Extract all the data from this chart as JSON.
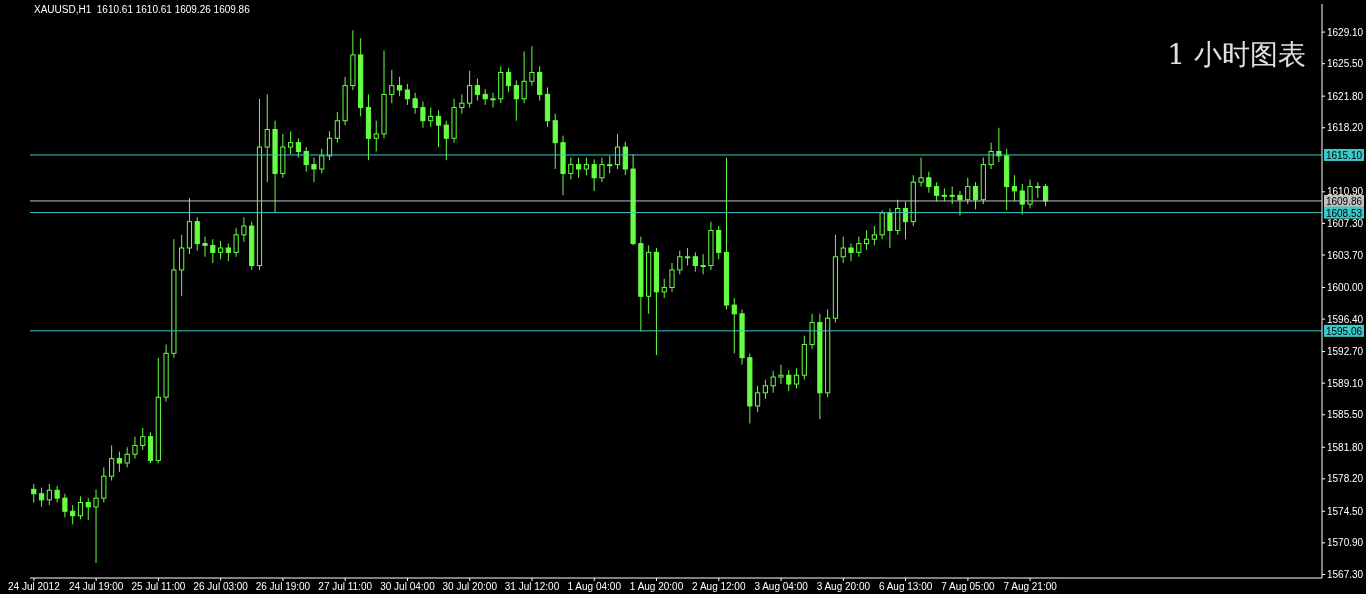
{
  "chart_data": {
    "type": "candlestick",
    "title": "XAUUSD,H1  1610.61 1610.61 1609.26 1609.86",
    "annotations": [
      "1 小时图表"
    ],
    "color": "#66ff44",
    "categories": [
      "24 Jul 2012",
      null,
      null,
      null,
      null,
      null,
      null,
      null,
      "24 Jul 19:00",
      null,
      null,
      null,
      null,
      null,
      null,
      null,
      "25 Jul 11:00",
      null,
      null,
      null,
      null,
      null,
      null,
      null,
      "26 Jul 03:00",
      null,
      null,
      null,
      null,
      null,
      null,
      null,
      "26 Jul 19:00",
      null,
      null,
      null,
      null,
      null,
      null,
      null,
      "27 Jul 11:00",
      null,
      null,
      null,
      null,
      null,
      null,
      null,
      "30 Jul 04:00",
      null,
      null,
      null,
      null,
      null,
      null,
      null,
      "30 Jul 20:00",
      null,
      null,
      null,
      null,
      null,
      null,
      null,
      "31 Jul 12:00",
      null,
      null,
      null,
      null,
      null,
      null,
      null,
      "1 Aug 04:00",
      null,
      null,
      null,
      null,
      null,
      null,
      null,
      "1 Aug 20:00",
      null,
      null,
      null,
      null,
      null,
      null,
      null,
      "2 Aug 12:00",
      null,
      null,
      null,
      null,
      null,
      null,
      null,
      "3 Aug 04:00",
      null,
      null,
      null,
      null,
      null,
      null,
      null,
      "3 Aug 20:00",
      null,
      null,
      null,
      null,
      null,
      null,
      null,
      "6 Aug 13:00",
      null,
      null,
      null,
      null,
      null,
      null,
      null,
      "7 Aug 05:00",
      null,
      null,
      null,
      null,
      null,
      null,
      null,
      "7 Aug 21:00",
      null,
      null,
      null,
      null,
      null,
      null,
      null,
      null,
      null,
      null,
      null,
      null,
      null,
      null,
      null,
      null,
      null,
      null,
      null,
      null,
      null,
      null,
      null,
      null,
      null,
      null,
      null,
      null,
      null,
      null,
      null,
      null,
      null,
      null,
      null,
      null,
      null
    ],
    "ohlc": [
      [
        1577.0,
        1577.6,
        1575.5,
        1576.5
      ],
      [
        1576.5,
        1577.2,
        1575.0,
        1575.8
      ],
      [
        1575.8,
        1577.6,
        1575.2,
        1576.9
      ],
      [
        1576.9,
        1577.4,
        1575.5,
        1576.0
      ],
      [
        1576.0,
        1576.5,
        1573.8,
        1574.5
      ],
      [
        1574.5,
        1575.2,
        1573.0,
        1574.0
      ],
      [
        1574.0,
        1576.2,
        1573.6,
        1575.5
      ],
      [
        1575.5,
        1576.0,
        1573.5,
        1575.0
      ],
      [
        1575.0,
        1577.0,
        1568.6,
        1576.0
      ],
      [
        1576.0,
        1579.5,
        1575.5,
        1578.5
      ],
      [
        1578.5,
        1582.0,
        1578.0,
        1580.5
      ],
      [
        1580.5,
        1581.3,
        1579.0,
        1580.0
      ],
      [
        1580.0,
        1581.8,
        1579.5,
        1581.0
      ],
      [
        1581.0,
        1583.0,
        1580.5,
        1582.0
      ],
      [
        1582.0,
        1584.0,
        1581.5,
        1583.0
      ],
      [
        1583.0,
        1583.5,
        1580.0,
        1580.3
      ],
      [
        1580.3,
        1592.0,
        1580.0,
        1587.5
      ],
      [
        1587.5,
        1593.5,
        1587.0,
        1592.5
      ],
      [
        1592.5,
        1605.5,
        1592.0,
        1602.0
      ],
      [
        1602.0,
        1606.0,
        1599.0,
        1604.5
      ],
      [
        1604.5,
        1610.2,
        1603.8,
        1607.5
      ],
      [
        1607.5,
        1608.0,
        1604.2,
        1605.0
      ],
      [
        1605.0,
        1605.8,
        1603.5,
        1604.8
      ],
      [
        1604.8,
        1605.5,
        1602.8,
        1604.0
      ],
      [
        1604.0,
        1605.3,
        1603.2,
        1604.5
      ],
      [
        1604.5,
        1605.0,
        1603.0,
        1604.0
      ],
      [
        1604.0,
        1606.8,
        1603.5,
        1606.0
      ],
      [
        1606.0,
        1608.0,
        1605.2,
        1607.0
      ],
      [
        1607.0,
        1607.5,
        1602.0,
        1602.5
      ],
      [
        1602.5,
        1621.5,
        1602.0,
        1616.0
      ],
      [
        1616.0,
        1622.0,
        1612.0,
        1618.0
      ],
      [
        1618.0,
        1619.0,
        1608.5,
        1613.0
      ],
      [
        1613.0,
        1617.5,
        1612.5,
        1616.0
      ],
      [
        1616.0,
        1617.8,
        1615.2,
        1616.5
      ],
      [
        1616.5,
        1617.0,
        1614.8,
        1615.5
      ],
      [
        1615.5,
        1616.0,
        1613.2,
        1614.0
      ],
      [
        1614.0,
        1614.8,
        1612.0,
        1613.5
      ],
      [
        1613.5,
        1615.8,
        1613.0,
        1615.0
      ],
      [
        1615.0,
        1617.8,
        1614.5,
        1617.0
      ],
      [
        1617.0,
        1620.0,
        1616.5,
        1619.0
      ],
      [
        1619.0,
        1624.0,
        1618.5,
        1623.0
      ],
      [
        1623.0,
        1629.3,
        1622.5,
        1626.5
      ],
      [
        1626.5,
        1628.4,
        1619.5,
        1620.5
      ],
      [
        1620.5,
        1622.0,
        1614.5,
        1617.0
      ],
      [
        1617.0,
        1619.0,
        1615.5,
        1617.5
      ],
      [
        1617.5,
        1627.0,
        1617.0,
        1622.0
      ],
      [
        1622.0,
        1624.8,
        1621.0,
        1623.0
      ],
      [
        1623.0,
        1624.0,
        1621.8,
        1622.5
      ],
      [
        1622.5,
        1623.2,
        1620.8,
        1621.5
      ],
      [
        1621.5,
        1622.2,
        1619.8,
        1620.5
      ],
      [
        1620.5,
        1621.2,
        1618.2,
        1619.0
      ],
      [
        1619.0,
        1620.5,
        1618.3,
        1619.5
      ],
      [
        1619.5,
        1620.2,
        1616.0,
        1618.5
      ],
      [
        1618.5,
        1619.0,
        1614.5,
        1617.0
      ],
      [
        1617.0,
        1621.5,
        1616.5,
        1620.5
      ],
      [
        1620.5,
        1622.0,
        1619.8,
        1621.0
      ],
      [
        1621.0,
        1624.7,
        1620.5,
        1623.0
      ],
      [
        1623.0,
        1623.8,
        1621.3,
        1622.0
      ],
      [
        1622.0,
        1622.6,
        1620.8,
        1621.5
      ],
      [
        1621.5,
        1622.2,
        1620.5,
        1621.5
      ],
      [
        1621.5,
        1625.2,
        1621.0,
        1624.5
      ],
      [
        1624.5,
        1625.0,
        1622.3,
        1623.0
      ],
      [
        1623.0,
        1623.6,
        1619.0,
        1621.5
      ],
      [
        1621.5,
        1626.9,
        1621.0,
        1623.5
      ],
      [
        1623.5,
        1627.5,
        1623.0,
        1624.5
      ],
      [
        1624.5,
        1625.2,
        1621.3,
        1622.0
      ],
      [
        1622.0,
        1622.8,
        1618.3,
        1619.0
      ],
      [
        1619.0,
        1619.8,
        1613.5,
        1616.5
      ],
      [
        1616.5,
        1617.3,
        1610.5,
        1613.0
      ],
      [
        1613.0,
        1614.8,
        1612.3,
        1614.0
      ],
      [
        1614.0,
        1614.8,
        1612.5,
        1613.5
      ],
      [
        1613.5,
        1614.8,
        1612.8,
        1614.0
      ],
      [
        1614.0,
        1614.6,
        1611.0,
        1612.5
      ],
      [
        1612.5,
        1614.8,
        1612.0,
        1614.0
      ],
      [
        1614.0,
        1615.0,
        1613.0,
        1614.0
      ],
      [
        1614.0,
        1617.5,
        1613.5,
        1616.0
      ],
      [
        1616.0,
        1616.6,
        1612.8,
        1613.5
      ],
      [
        1613.5,
        1615.2,
        1604.8,
        1605.0
      ],
      [
        1605.0,
        1605.8,
        1595.0,
        1599.0
      ],
      [
        1599.0,
        1604.8,
        1597.0,
        1604.0
      ],
      [
        1604.0,
        1604.5,
        1592.3,
        1599.5
      ],
      [
        1599.5,
        1601.0,
        1598.8,
        1600.0
      ],
      [
        1600.0,
        1602.8,
        1599.5,
        1602.0
      ],
      [
        1602.0,
        1604.2,
        1601.5,
        1603.5
      ],
      [
        1603.5,
        1604.5,
        1602.5,
        1603.5
      ],
      [
        1603.5,
        1604.0,
        1601.8,
        1602.5
      ],
      [
        1602.5,
        1603.8,
        1601.5,
        1602.5
      ],
      [
        1602.5,
        1607.5,
        1602.0,
        1606.5
      ],
      [
        1606.5,
        1607.0,
        1603.2,
        1604.0
      ],
      [
        1604.0,
        1614.8,
        1597.5,
        1598.0
      ],
      [
        1598.0,
        1598.8,
        1592.5,
        1597.0
      ],
      [
        1597.0,
        1597.5,
        1591.2,
        1592.0
      ],
      [
        1592.0,
        1592.5,
        1584.5,
        1586.5
      ],
      [
        1586.5,
        1588.8,
        1585.8,
        1588.0
      ],
      [
        1588.0,
        1589.5,
        1587.3,
        1588.8
      ],
      [
        1588.8,
        1590.5,
        1588.0,
        1589.8
      ],
      [
        1589.8,
        1591.2,
        1589.0,
        1590.0
      ],
      [
        1590.0,
        1590.6,
        1588.2,
        1589.0
      ],
      [
        1589.0,
        1590.8,
        1588.5,
        1590.0
      ],
      [
        1590.0,
        1594.5,
        1589.5,
        1593.5
      ],
      [
        1593.5,
        1597.0,
        1593.0,
        1596.0
      ],
      [
        1596.0,
        1597.0,
        1585.0,
        1588.0
      ],
      [
        1588.0,
        1597.5,
        1587.5,
        1596.5
      ],
      [
        1596.5,
        1606.0,
        1596.0,
        1603.5
      ],
      [
        1603.5,
        1605.8,
        1602.8,
        1604.5
      ],
      [
        1604.5,
        1605.0,
        1603.0,
        1604.0
      ],
      [
        1604.0,
        1605.8,
        1603.5,
        1605.0
      ],
      [
        1605.0,
        1606.5,
        1604.3,
        1605.5
      ],
      [
        1605.5,
        1607.0,
        1604.8,
        1606.0
      ],
      [
        1606.0,
        1608.8,
        1605.5,
        1608.5
      ],
      [
        1608.5,
        1609.0,
        1604.5,
        1606.5
      ],
      [
        1606.5,
        1610.0,
        1606.0,
        1609.0
      ],
      [
        1609.0,
        1609.8,
        1605.5,
        1607.5
      ],
      [
        1607.5,
        1612.8,
        1607.0,
        1612.0
      ],
      [
        1612.0,
        1614.8,
        1611.5,
        1612.5
      ],
      [
        1612.5,
        1613.2,
        1610.8,
        1611.5
      ],
      [
        1611.5,
        1612.0,
        1609.8,
        1610.5
      ],
      [
        1610.5,
        1611.3,
        1609.8,
        1610.5
      ],
      [
        1610.5,
        1611.5,
        1609.5,
        1610.5
      ],
      [
        1610.5,
        1611.0,
        1608.2,
        1610.0
      ],
      [
        1610.0,
        1612.5,
        1609.5,
        1611.5
      ],
      [
        1611.5,
        1612.0,
        1608.9,
        1610.0
      ],
      [
        1610.0,
        1614.8,
        1609.5,
        1614.0
      ],
      [
        1614.0,
        1616.5,
        1613.5,
        1615.5
      ],
      [
        1615.5,
        1618.2,
        1614.3,
        1615.0
      ],
      [
        1615.0,
        1615.8,
        1608.8,
        1611.5
      ],
      [
        1611.5,
        1612.8,
        1609.8,
        1611.0
      ],
      [
        1611.0,
        1611.8,
        1608.3,
        1609.5
      ],
      [
        1609.5,
        1612.3,
        1609.0,
        1611.5
      ],
      [
        1611.5,
        1612.0,
        1610.2,
        1611.5
      ],
      [
        1611.5,
        1611.8,
        1609.26,
        1609.86
      ],
      null,
      null,
      null,
      null,
      null,
      null,
      null,
      null,
      null,
      null,
      null,
      null,
      null,
      null,
      null,
      null,
      null,
      null,
      null,
      null,
      null,
      null,
      null,
      null,
      null,
      null,
      null,
      null,
      null,
      null,
      null,
      null,
      null,
      null,
      null
    ],
    "ylim": [
      1566.9,
      1632.3
    ],
    "yticks": [
      {
        "value": 1629.1,
        "label": "1629.10"
      },
      {
        "value": 1625.5,
        "label": "1625.50"
      },
      {
        "value": 1621.8,
        "label": "1621.80"
      },
      {
        "value": 1618.2,
        "label": "1618.20"
      },
      {
        "value": 1610.9,
        "label": "1610.90"
      },
      {
        "value": 1607.3,
        "label": "1607.30"
      },
      {
        "value": 1603.7,
        "label": "1603.70"
      },
      {
        "value": 1600,
        "label": "1600.00"
      },
      {
        "value": 1596.4,
        "label": "1596.40"
      },
      {
        "value": 1592.7,
        "label": "1592.70"
      },
      {
        "value": 1589.1,
        "label": "1589.10"
      },
      {
        "value": 1585.5,
        "label": "1585.50"
      },
      {
        "value": 1581.8,
        "label": "1581.80"
      },
      {
        "value": 1578.2,
        "label": "1578.20"
      },
      {
        "value": 1574.5,
        "label": "1574.50"
      },
      {
        "value": 1570.9,
        "label": "1570.90"
      },
      {
        "value": 1567.3,
        "label": "1567.30"
      }
    ],
    "ref_lines": [
      {
        "axis": "y",
        "value": 1615.1,
        "label": "1615.10",
        "color": "#3cc8c8"
      },
      {
        "axis": "y",
        "value": 1609.86,
        "label": "1609.86",
        "color": "#c0c0c0"
      },
      {
        "axis": "y",
        "value": 1608.53,
        "label": "1608.53",
        "color": "#3cc8c8"
      },
      {
        "axis": "y",
        "value": 1595.06,
        "label": "1595.06",
        "color": "#3cc8c8"
      }
    ]
  }
}
